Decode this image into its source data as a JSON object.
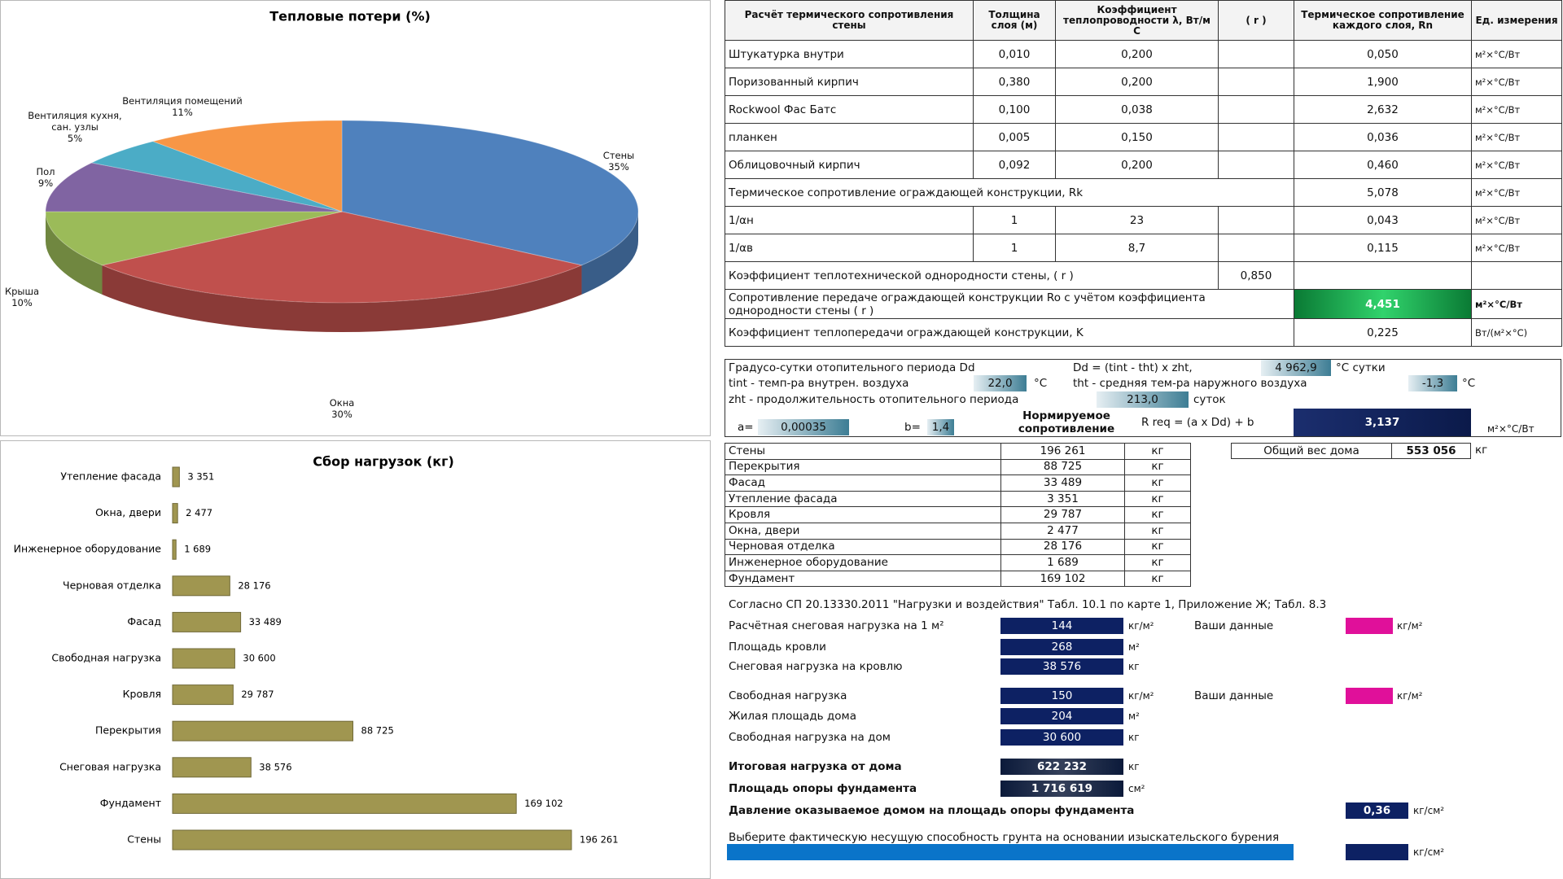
{
  "chart_data": [
    {
      "type": "pie",
      "title": "Тепловые потери (%)",
      "categories": [
        "Стены",
        "Окна",
        "Крыша",
        "Пол",
        "Вентиляция кухня, сан. узлы",
        "Вентиляция помещений"
      ],
      "values": [
        35,
        30,
        10,
        9,
        5,
        11
      ],
      "value_labels": [
        "35%",
        "30%",
        "10%",
        "9%",
        "5%",
        "11%"
      ],
      "colors": [
        "#4f81bd",
        "#c0504d",
        "#9bbb59",
        "#8064a2",
        "#4bacc6",
        "#f79646"
      ]
    },
    {
      "type": "bar",
      "orientation": "horizontal",
      "title": "Сбор нагрузок (кг)",
      "categories": [
        "Утепление фасада",
        "Окна, двери",
        "Инженерное оборудование",
        "Черновая отделка",
        "Фасад",
        "Свободная нагрузка",
        "Кровля",
        "Перекрытия",
        "Снеговая нагрузка",
        "Фундамент",
        "Стены"
      ],
      "values": [
        3351,
        2477,
        1689,
        28176,
        33489,
        30600,
        29787,
        88725,
        38576,
        169102,
        196261
      ],
      "value_labels": [
        "3 351",
        "2 477",
        "1 689",
        "28 176",
        "33 489",
        "30 600",
        "29 787",
        "88 725",
        "38 576",
        "169 102",
        "196 261"
      ],
      "color": "#a09650"
    }
  ],
  "thermal_table": {
    "header": [
      "Расчёт термического сопротивления стены",
      "Толщина слоя (м)",
      "Коэффициент теплопроводности λ, Вт/м С",
      "( r )",
      "Термическое сопротивление каждого слоя, Rn",
      "Ед. измерения"
    ],
    "rows": [
      [
        "Штукатурка внутри",
        "0,010",
        "0,200",
        "0,050",
        "м²×°С/Вт"
      ],
      [
        "Поризованный кирпич",
        "0,380",
        "0,200",
        "1,900",
        "м²×°С/Вт"
      ],
      [
        "Rockwool Фас Батс",
        "0,100",
        "0,038",
        "2,632",
        "м²×°С/Вт"
      ],
      [
        "планкен",
        "0,005",
        "0,150",
        "0,036",
        "м²×°С/Вт"
      ],
      [
        "Облицовочный кирпич",
        "0,092",
        "0,200",
        "0,460",
        "м²×°С/Вт"
      ],
      [
        "Термическое сопротивление ограждающей конструкции, Rk",
        "5,078",
        "м²×°С/Вт"
      ],
      [
        "1/αн",
        "1",
        "23",
        "0,043",
        "м²×°С/Вт"
      ],
      [
        "1/αв",
        "1",
        "8,7",
        "0,115",
        "м²×°С/Вт"
      ],
      [
        "Коэффициент теплотехнической однородности стены, ( r )",
        "0,850"
      ],
      [
        "Сопротивление передаче ограждающей конструкции Ro с учётом коэффициента однородности стены ( r )",
        "4,451",
        "м²×°С/Вт"
      ],
      [
        "Коэффициент теплопередачи ограждающей конструкции, K",
        "0,225",
        "Вт/(м²×°С)"
      ]
    ]
  },
  "degree_days": {
    "dd_label": "Градусо-сутки отопительного периода Dd",
    "dd_formula": "Dd = (tint - tht) x zht,",
    "dd_value": "4 962,9",
    "dd_unit": "°С сутки",
    "tint_label": "tint - темп-ра внутрен. воздуха",
    "tint_value": "22,0",
    "tint_unit": "°С",
    "tht_label": "tht - средняя тем-ра наружного воздуха",
    "tht_value": "-1,3",
    "tht_unit": "°С",
    "zht_label": "zht - продолжительность отопительного периода",
    "zht_value": "213,0",
    "zht_unit": "суток",
    "a_label": "a=",
    "a_value": "0,00035",
    "b_label": "b=",
    "b_value": "1,4",
    "norm_label": "Нормируемое сопротивление",
    "rreq_formula": "R req = (a x Dd) + b",
    "rreq_value": "3,137",
    "rreq_unit": "м²×°С/Вт"
  },
  "weights": {
    "rows": [
      [
        "Стены",
        "196 261",
        "кг"
      ],
      [
        "Перекрытия",
        "88 725",
        "кг"
      ],
      [
        "Фасад",
        "33 489",
        "кг"
      ],
      [
        "Утепление фасада",
        "3 351",
        "кг"
      ],
      [
        "Кровля",
        "29 787",
        "кг"
      ],
      [
        "Окна, двери",
        "2 477",
        "кг"
      ],
      [
        "Черновая отделка",
        "28 176",
        "кг"
      ],
      [
        "Инженерное оборудование",
        "1 689",
        "кг"
      ],
      [
        "Фундамент",
        "169 102",
        "кг"
      ]
    ],
    "total_label": "Общий вес дома",
    "total": "553 056",
    "total_unit": "кг"
  },
  "loads": {
    "note": "Согласно СП 20.13330.2011 \"Нагрузки и воздействия\"  Табл. 10.1 по карте 1, Приложение Ж; Табл. 8.3",
    "rows": [
      {
        "label": "Расчётная снеговая нагрузка на 1 м²",
        "value": "144",
        "unit": "кг/м²",
        "user_label": "Ваши данные",
        "user_unit": "кг/м²"
      },
      {
        "label": "Площадь кровли",
        "value": "268",
        "unit": "м²"
      },
      {
        "label": "Снеговая нагрузка на кровлю",
        "value": "38 576",
        "unit": "кг"
      },
      {
        "label": "Свободная нагрузка",
        "value": "150",
        "unit": "кг/м²",
        "user_label": "Ваши данные",
        "user_unit": "кг/м²"
      },
      {
        "label": "Жилая площадь дома",
        "value": "204",
        "unit": "м²"
      },
      {
        "label": "Свободная нагрузка на дом",
        "value": "30 600",
        "unit": "кг"
      },
      {
        "label": "Итоговая нагрузка от дома",
        "value": "622 232",
        "unit": "кг"
      },
      {
        "label": "Площадь опоры фундамента",
        "value": "1 716 619",
        "unit": "см²"
      },
      {
        "label": "Давление оказываемое домом на площадь опоры фундамента",
        "value": "0,36",
        "unit": "кг/см²"
      },
      {
        "label": "Выберите фактическую несущую способность грунта на основании изыскательского бурения",
        "unit": "кг/см²"
      }
    ]
  }
}
